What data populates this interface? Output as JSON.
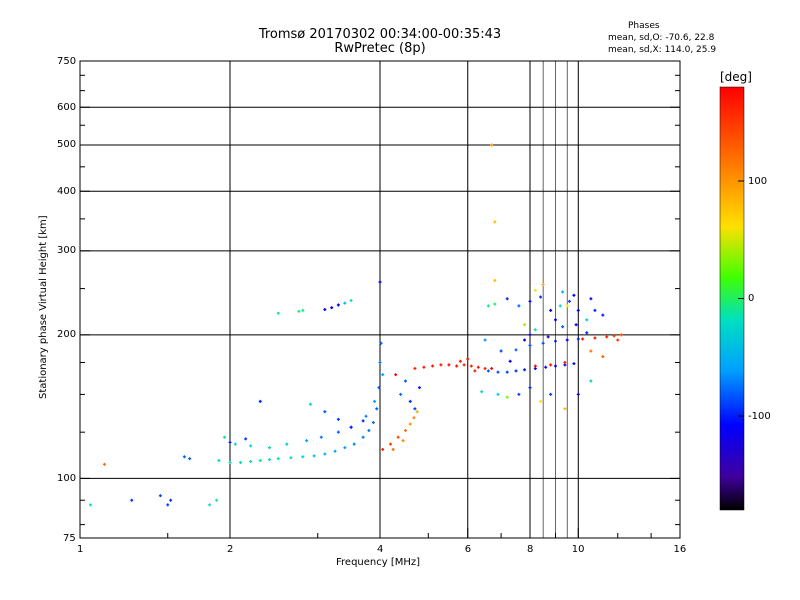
{
  "header": {
    "title_line1": "Tromsø 20170302 00:34:00-00:35:43",
    "title_line2": "RwPretec (8p)",
    "phase_title": "Phases",
    "stat_o": "mean, sd,O: -70.6, 22.8",
    "stat_x": "mean, sd,X: 114.0, 25.9"
  },
  "colorbar": {
    "unit": "[deg]",
    "ticks": [
      "100",
      "0",
      "-100"
    ]
  },
  "chart_data": {
    "type": "scatter",
    "title": "Tromsø 20170302 00:34:00-00:35:43",
    "subtitle": "RwPretec (8p)",
    "xlabel": "Frequency [MHz]",
    "ylabel": "Stationary phase Virtual Height [km]",
    "x_scale": "log",
    "y_scale": "log",
    "xlim": [
      1,
      16
    ],
    "ylim": [
      75,
      750
    ],
    "x_ticks": [
      "1",
      "2",
      "4",
      "6",
      "8",
      "10",
      "16"
    ],
    "y_ticks": [
      "75",
      "100",
      "200",
      "300",
      "400",
      "500",
      "600",
      "750"
    ],
    "grid": true,
    "colorbar_range_deg": [
      -180,
      180
    ],
    "series": [
      {
        "points": [
          [
            1.05,
            88,
            -20
          ],
          [
            1.27,
            90,
            -95
          ],
          [
            1.45,
            92,
            -85
          ],
          [
            1.5,
            88,
            -90
          ],
          [
            1.52,
            90,
            -95
          ],
          [
            1.82,
            88,
            -20
          ],
          [
            1.88,
            90,
            -10
          ],
          [
            1.12,
            107,
            120
          ],
          [
            1.62,
            111,
            -80
          ],
          [
            1.66,
            110,
            -80
          ]
        ]
      },
      {
        "points": [
          [
            1.9,
            109,
            -25
          ],
          [
            2.0,
            108,
            -25
          ],
          [
            2.1,
            108,
            -20
          ],
          [
            2.2,
            108.5,
            -15
          ],
          [
            2.3,
            109,
            -15
          ],
          [
            2.4,
            109.5,
            -20
          ],
          [
            2.5,
            110,
            -20
          ],
          [
            2.65,
            110.5,
            -25
          ],
          [
            2.8,
            111,
            -30
          ],
          [
            2.95,
            111.5,
            -40
          ],
          [
            3.1,
            112.5,
            -50
          ],
          [
            3.25,
            114,
            -55
          ],
          [
            3.4,
            116,
            -60
          ],
          [
            3.55,
            118,
            -70
          ],
          [
            3.7,
            122,
            -70
          ],
          [
            3.8,
            126,
            -75
          ],
          [
            3.88,
            131,
            -75
          ],
          [
            3.94,
            140,
            -80
          ],
          [
            3.98,
            155,
            -80
          ],
          [
            4.0,
            175,
            -75
          ],
          [
            4.02,
            192,
            -80
          ],
          [
            3.75,
            135,
            -70
          ],
          [
            3.9,
            145,
            -60
          ],
          [
            4.05,
            165,
            -55
          ],
          [
            2.05,
            118,
            -30
          ],
          [
            2.2,
            117,
            -25
          ],
          [
            2.4,
            116,
            -20
          ],
          [
            2.6,
            118,
            -40
          ],
          [
            2.85,
            120,
            -60
          ],
          [
            3.05,
            122,
            -70
          ],
          [
            3.3,
            125,
            -80
          ],
          [
            3.5,
            128,
            -90
          ],
          [
            1.95,
            122,
            -10
          ]
        ]
      },
      {
        "points": [
          [
            4.05,
            115,
            160
          ],
          [
            4.2,
            118,
            150
          ],
          [
            4.35,
            122,
            140
          ],
          [
            4.5,
            126,
            120
          ],
          [
            4.6,
            130,
            100
          ],
          [
            4.68,
            134,
            110
          ],
          [
            4.75,
            138,
            90
          ],
          [
            4.25,
            115,
            120
          ],
          [
            4.45,
            120,
            110
          ],
          [
            4.3,
            165,
            175
          ],
          [
            4.5,
            160,
            -80
          ],
          [
            4.7,
            140,
            -90
          ],
          [
            4.6,
            145,
            -95
          ],
          [
            4.4,
            150,
            -75
          ],
          [
            4.8,
            155,
            -100
          ]
        ]
      },
      {
        "points": [
          [
            4.7,
            170,
            160
          ],
          [
            4.9,
            171,
            170
          ],
          [
            5.1,
            172,
            165
          ],
          [
            5.3,
            173,
            170
          ],
          [
            5.5,
            173,
            175
          ],
          [
            5.7,
            172,
            170
          ],
          [
            5.9,
            173,
            165
          ],
          [
            6.1,
            172,
            160
          ],
          [
            6.3,
            171,
            170
          ],
          [
            6.5,
            170,
            165
          ],
          [
            6.7,
            170,
            175
          ],
          [
            6.0,
            178,
            170
          ],
          [
            5.8,
            176,
            165
          ],
          [
            6.2,
            168,
            160
          ]
        ]
      },
      {
        "points": [
          [
            6.6,
            168,
            -80
          ],
          [
            6.9,
            167,
            -85
          ],
          [
            7.2,
            167,
            -90
          ],
          [
            7.5,
            168,
            -95
          ],
          [
            7.8,
            169,
            -100
          ],
          [
            8.2,
            170,
            -110
          ],
          [
            8.6,
            171,
            -120
          ],
          [
            9.0,
            172,
            -115
          ],
          [
            9.4,
            173,
            -110
          ],
          [
            9.8,
            174,
            -115
          ],
          [
            7.0,
            185,
            -90
          ],
          [
            7.5,
            186,
            -80
          ],
          [
            8.0,
            190,
            -85
          ],
          [
            8.5,
            192,
            -90
          ],
          [
            9.0,
            194,
            -100
          ],
          [
            9.5,
            195,
            -110
          ],
          [
            10.0,
            196,
            -100
          ]
        ]
      },
      {
        "points": [
          [
            8.2,
            172,
            170
          ],
          [
            8.8,
            173,
            170
          ],
          [
            9.4,
            175,
            165
          ],
          [
            10.2,
            196,
            170
          ],
          [
            10.8,
            197,
            165
          ],
          [
            11.4,
            198,
            160
          ],
          [
            11.8,
            199,
            150
          ],
          [
            12.2,
            200,
            140
          ],
          [
            10.6,
            185,
            120
          ],
          [
            11.2,
            180,
            130
          ],
          [
            12.0,
            195,
            150
          ]
        ]
      },
      {
        "points": [
          [
            6.6,
            230,
            -10
          ],
          [
            6.8,
            232,
            0
          ],
          [
            7.2,
            238,
            -100
          ],
          [
            7.6,
            230,
            -80
          ],
          [
            8.0,
            235,
            -110
          ],
          [
            8.4,
            240,
            -95
          ],
          [
            8.8,
            225,
            -110
          ],
          [
            9.2,
            230,
            -20
          ],
          [
            9.6,
            235,
            -90
          ],
          [
            10.0,
            225,
            -110
          ],
          [
            10.4,
            215,
            -30
          ],
          [
            10.8,
            225,
            -100
          ],
          [
            7.8,
            210,
            40
          ],
          [
            8.2,
            205,
            -15
          ],
          [
            8.7,
            198,
            -120
          ],
          [
            9.3,
            208,
            -80
          ],
          [
            9.9,
            210,
            -120
          ],
          [
            10.4,
            202,
            -100
          ],
          [
            8.0,
            200,
            -120
          ],
          [
            9.0,
            215,
            -110
          ],
          [
            6.8,
            260,
            80
          ],
          [
            8.2,
            248,
            60
          ],
          [
            9.3,
            246,
            -50
          ],
          [
            9.8,
            242,
            -110
          ],
          [
            10.6,
            238,
            -115
          ],
          [
            11.2,
            220,
            -100
          ],
          [
            8.5,
            255,
            90
          ],
          [
            9.5,
            230,
            60
          ],
          [
            8.8,
            150,
            -90
          ],
          [
            7.6,
            150,
            -90
          ],
          [
            8.0,
            155,
            -100
          ],
          [
            8.4,
            145,
            60
          ],
          [
            9.4,
            140,
            80
          ],
          [
            10.0,
            150,
            -120
          ],
          [
            10.6,
            160,
            -30
          ],
          [
            6.4,
            152,
            -20
          ],
          [
            6.9,
            150,
            -30
          ],
          [
            7.2,
            148,
            30
          ],
          [
            6.5,
            195,
            -60
          ],
          [
            7.8,
            195,
            -120
          ],
          [
            7.3,
            176,
            -110
          ],
          [
            6.7,
            500,
            100
          ],
          [
            6.8,
            345,
            80
          ],
          [
            4.0,
            258,
            -110
          ]
        ]
      },
      {
        "points": [
          [
            2.5,
            222,
            -10
          ],
          [
            2.75,
            224,
            -5
          ],
          [
            3.1,
            226,
            -110
          ],
          [
            3.2,
            228,
            -115
          ],
          [
            3.3,
            231,
            -110
          ],
          [
            3.4,
            233,
            -40
          ],
          [
            3.5,
            236,
            -20
          ],
          [
            2.8,
            225,
            -10
          ]
        ]
      },
      {
        "points": [
          [
            2.3,
            145,
            -100
          ],
          [
            2.9,
            143,
            -20
          ],
          [
            3.1,
            138,
            -80
          ],
          [
            3.3,
            133,
            -90
          ],
          [
            3.5,
            128,
            -100
          ],
          [
            3.7,
            132,
            -100
          ],
          [
            2.0,
            119,
            -100
          ],
          [
            2.15,
            121,
            -90
          ]
        ]
      }
    ]
  }
}
